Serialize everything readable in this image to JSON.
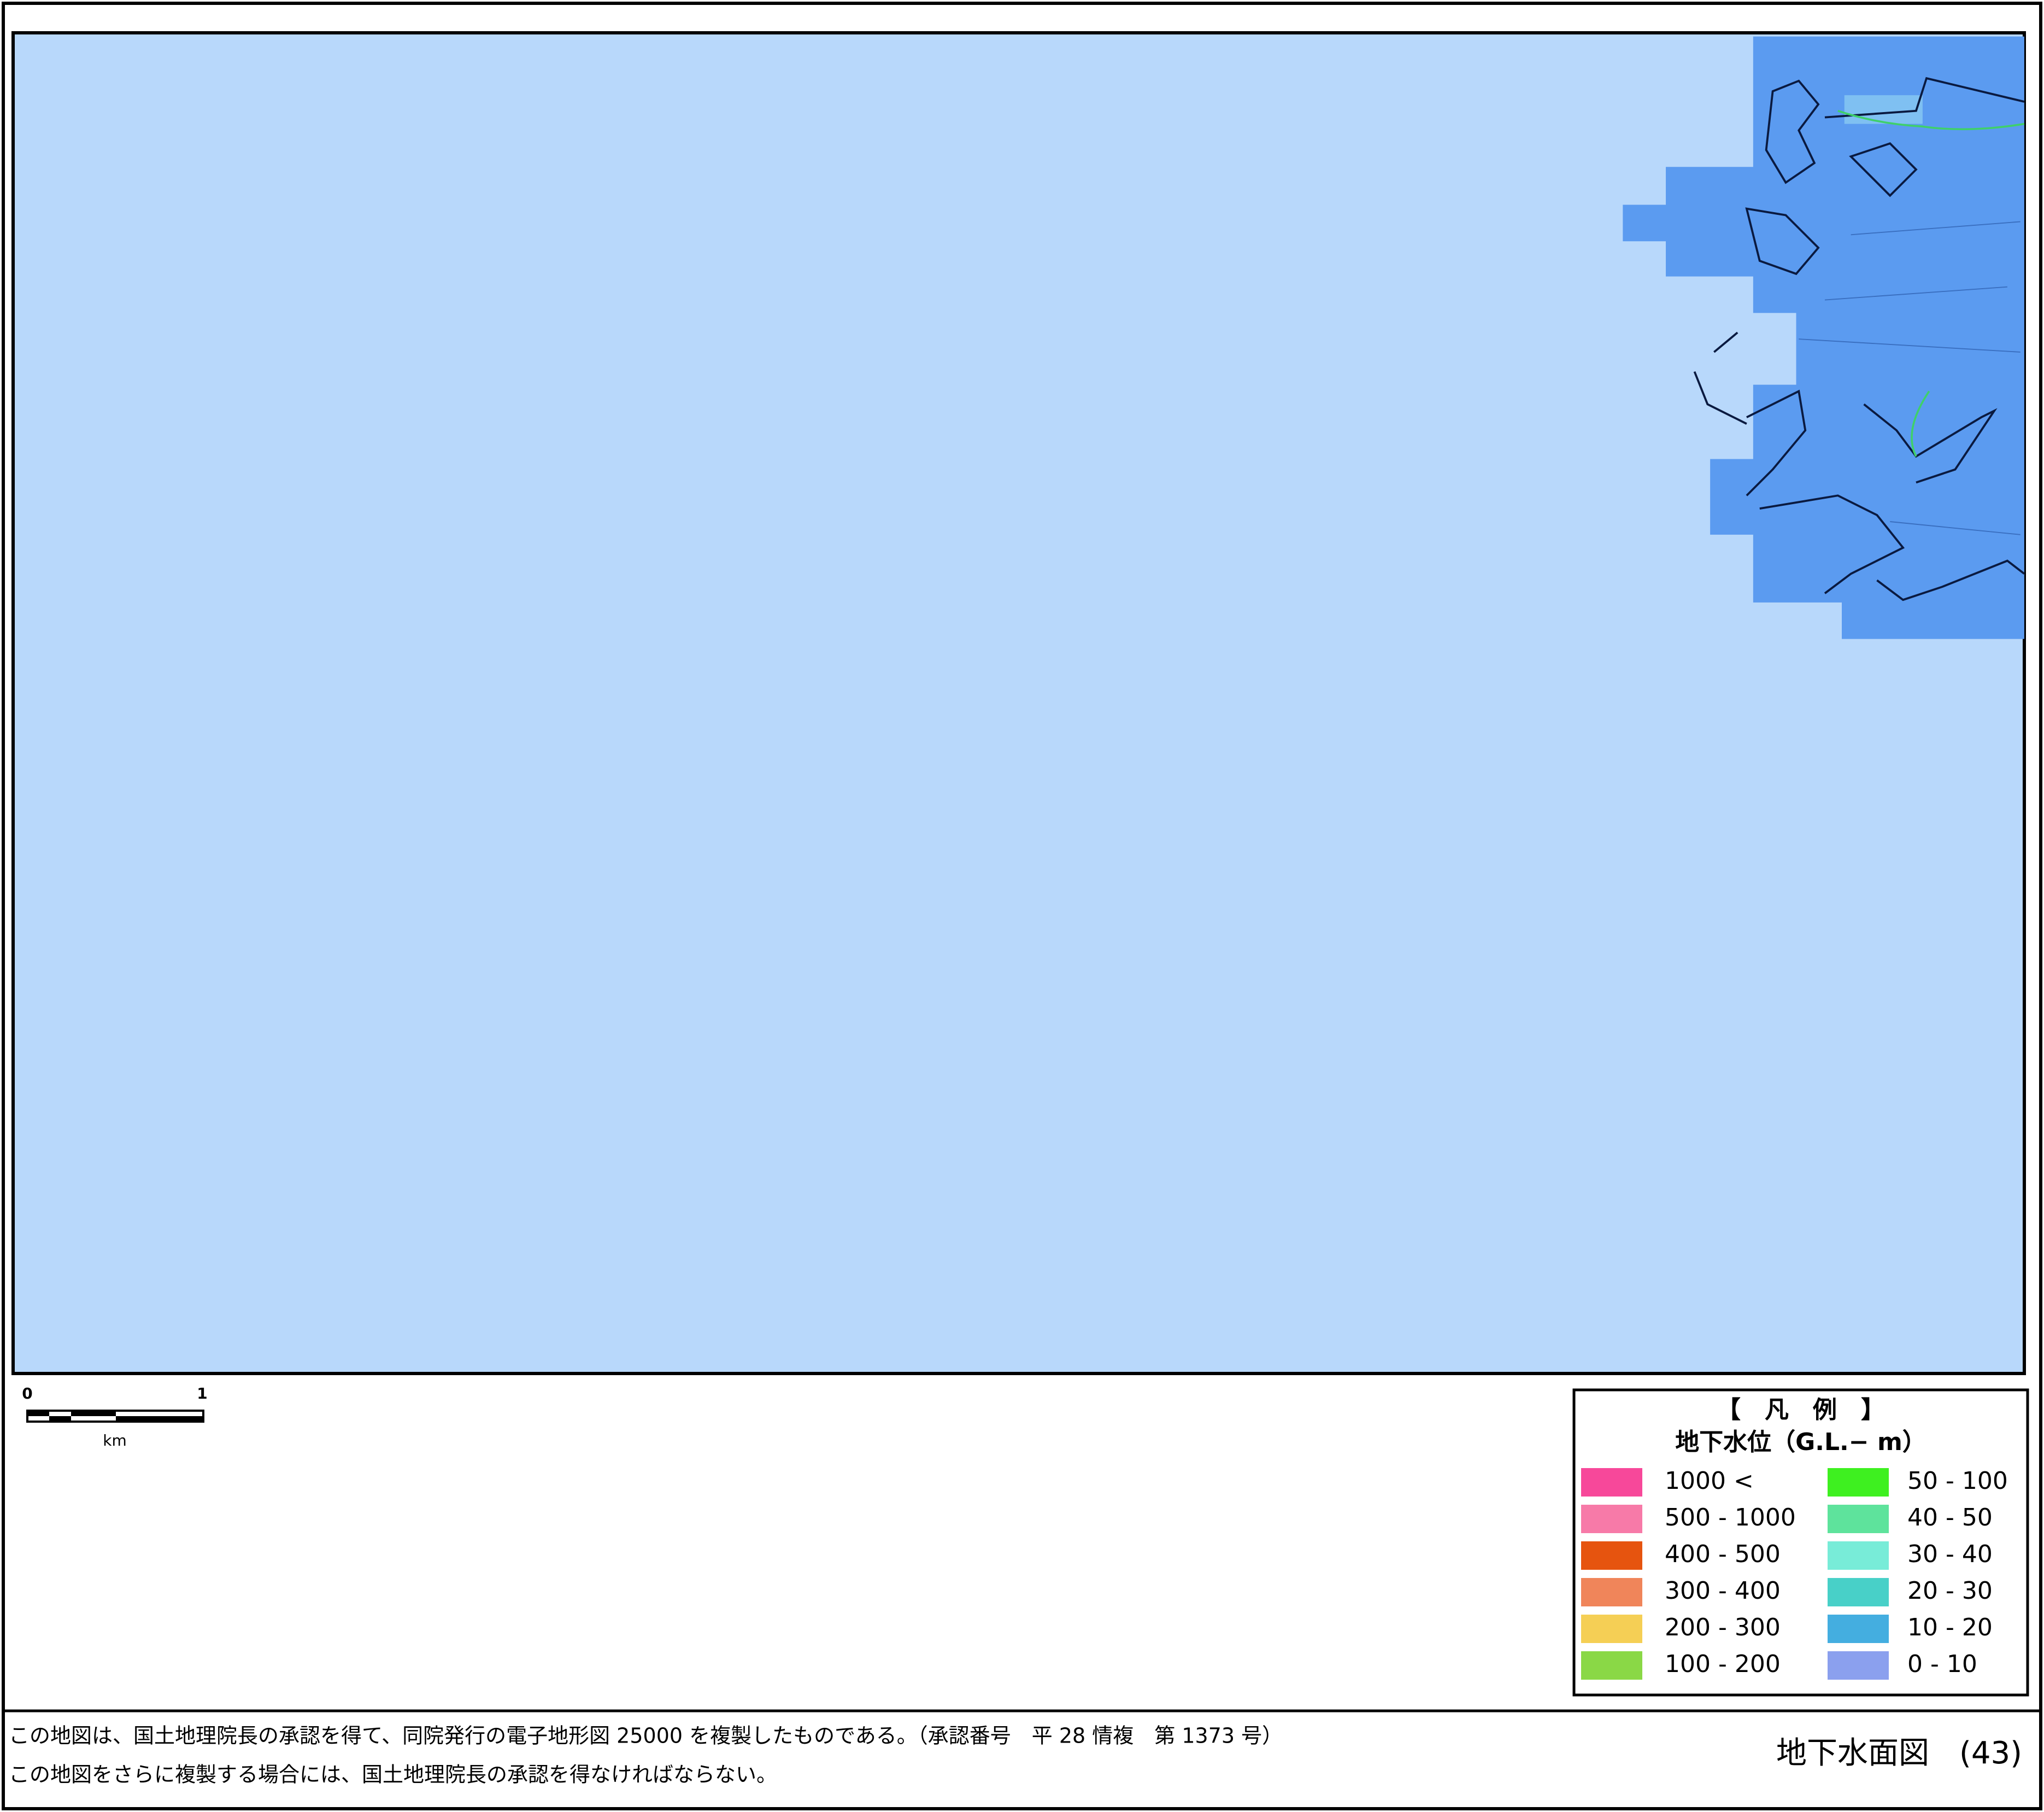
{
  "legend": {
    "title": "【　凡　例　】",
    "subtitle": "地下水位（G.L.− m）",
    "items": [
      {
        "label": "1000 <",
        "color": "#f7489a"
      },
      {
        "label": "500 - 1000",
        "color": "#f77aa8"
      },
      {
        "label": "400 - 500",
        "color": "#e6540f"
      },
      {
        "label": "300 - 400",
        "color": "#f0855a"
      },
      {
        "label": "200 - 300",
        "color": "#f5cf55"
      },
      {
        "label": "100 - 200",
        "color": "#8ad846"
      },
      {
        "label": "50 - 100",
        "color": "#3ef020"
      },
      {
        "label": "40 - 50",
        "color": "#5ee39c"
      },
      {
        "label": "30 - 40",
        "color": "#78ecd8"
      },
      {
        "label": "20 - 30",
        "color": "#48d0c8"
      },
      {
        "label": "10 - 20",
        "color": "#44aee0"
      },
      {
        "label": "0 - 10",
        "color": "#8ba0ee"
      }
    ]
  },
  "scale_bar": {
    "start": "0",
    "end": "1",
    "unit": "km"
  },
  "footer": {
    "notes": [
      "この地図は、国土地理院長の承認を得て、同院発行の電子地形図 25000 を複製したものである。（承認番号　平 28 情複　第 1373 号）",
      "この地図をさらに複製する場合には、国土地理院長の承認を得なければならない。"
    ],
    "title": "地下水面図",
    "sheet": "(43)"
  }
}
